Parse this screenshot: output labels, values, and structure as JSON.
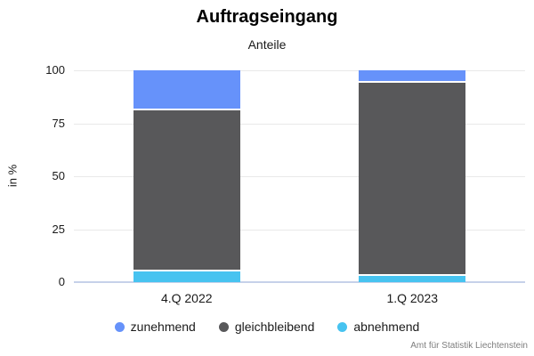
{
  "title": "Auftragseingang",
  "subtitle": "Anteile",
  "y_axis_label": "in %",
  "source": "Amt für Statistik Liechtenstein",
  "colors": {
    "zunehmend": "#6692fa",
    "gleichbleibend": "#58585a",
    "abnehmend": "#47c3f0",
    "gridline": "#e9e9e9",
    "baseline": "#c6d1e9"
  },
  "chart_data": {
    "type": "bar",
    "stacked": true,
    "title": "Auftragseingang",
    "subtitle": "Anteile",
    "ylabel": "in %",
    "categories": [
      "4.Q 2022",
      "1.Q 2023"
    ],
    "series": [
      {
        "name": "zunehmend",
        "color": "#6692fa",
        "values": [
          19,
          6
        ]
      },
      {
        "name": "gleichbleibend",
        "color": "#58585a",
        "values": [
          76,
          91
        ]
      },
      {
        "name": "abnehmend",
        "color": "#47c3f0",
        "values": [
          5,
          3
        ]
      }
    ],
    "ylim": [
      0,
      100
    ],
    "yticks": [
      0,
      25,
      50,
      75,
      100
    ],
    "grid": true,
    "legend_position": "bottom",
    "source": "Amt für Statistik Liechtenstein"
  }
}
